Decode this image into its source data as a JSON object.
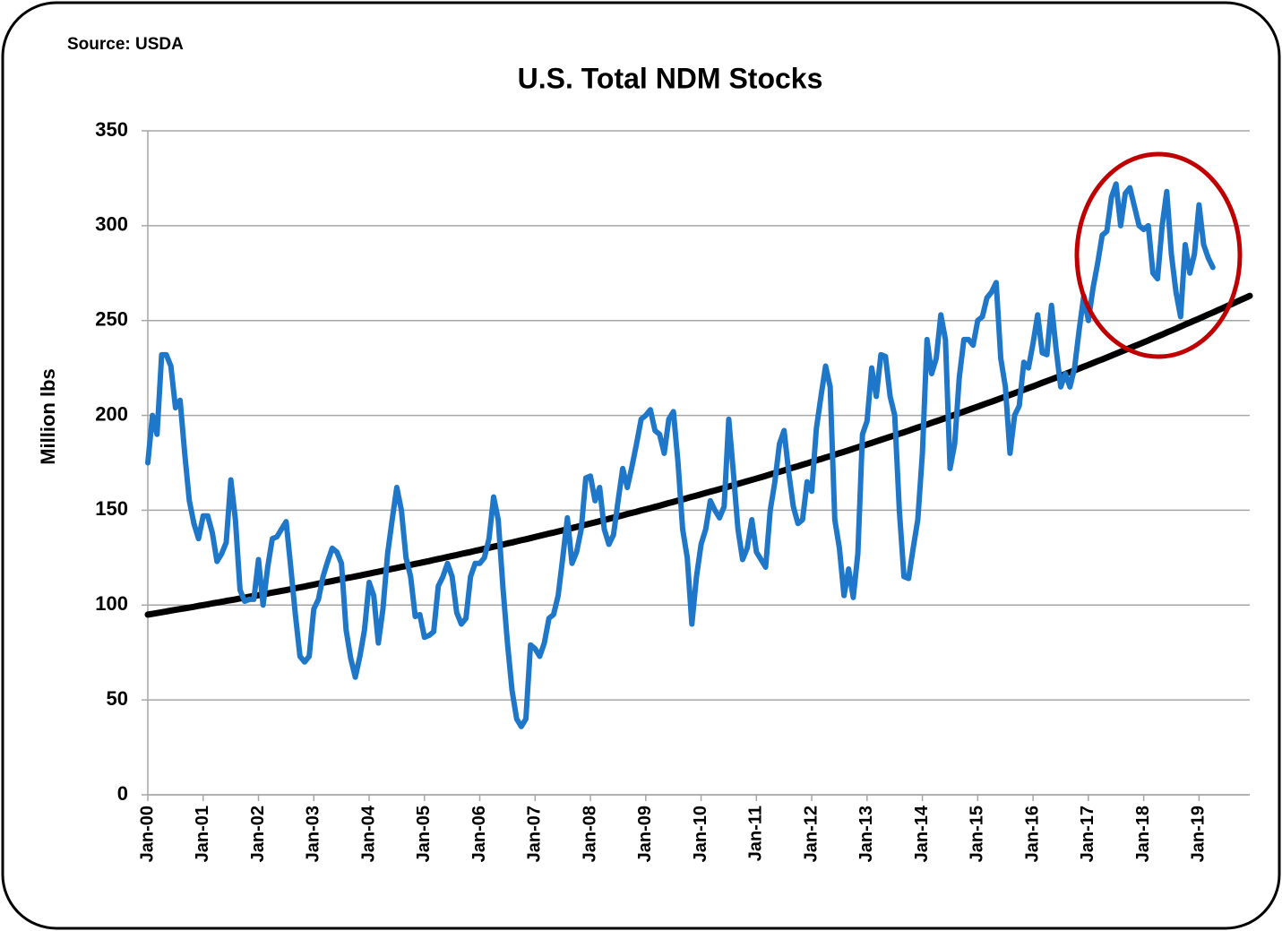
{
  "chart_data": {
    "type": "line",
    "source": "Source: USDA",
    "title": "U.S. Total NDM Stocks",
    "y_label": "Million lbs",
    "categories": [
      "Jan-00",
      null,
      null,
      null,
      null,
      null,
      null,
      null,
      null,
      null,
      null,
      null,
      "Jan-01",
      null,
      null,
      null,
      null,
      null,
      null,
      null,
      null,
      null,
      null,
      null,
      "Jan-02",
      null,
      null,
      null,
      null,
      null,
      null,
      null,
      null,
      null,
      null,
      null,
      "Jan-03",
      null,
      null,
      null,
      null,
      null,
      null,
      null,
      null,
      null,
      null,
      null,
      "Jan-04",
      null,
      null,
      null,
      null,
      null,
      null,
      null,
      null,
      null,
      null,
      null,
      "Jan-05",
      null,
      null,
      null,
      null,
      null,
      null,
      null,
      null,
      null,
      null,
      null,
      "Jan-06",
      null,
      null,
      null,
      null,
      null,
      null,
      null,
      null,
      null,
      null,
      null,
      "Jan-07",
      null,
      null,
      null,
      null,
      null,
      null,
      null,
      null,
      null,
      null,
      null,
      "Jan-08",
      null,
      null,
      null,
      null,
      null,
      null,
      null,
      null,
      null,
      null,
      null,
      "Jan-09",
      null,
      null,
      null,
      null,
      null,
      null,
      null,
      null,
      null,
      null,
      null,
      "Jan-10",
      null,
      null,
      null,
      null,
      null,
      null,
      null,
      null,
      null,
      null,
      null,
      "Jan-11",
      null,
      null,
      null,
      null,
      null,
      null,
      null,
      null,
      null,
      null,
      null,
      "Jan-12",
      null,
      null,
      null,
      null,
      null,
      null,
      null,
      null,
      null,
      null,
      null,
      "Jan-13",
      null,
      null,
      null,
      null,
      null,
      null,
      null,
      null,
      null,
      null,
      null,
      "Jan-14",
      null,
      null,
      null,
      null,
      null,
      null,
      null,
      null,
      null,
      null,
      null,
      "Jan-15",
      null,
      null,
      null,
      null,
      null,
      null,
      null,
      null,
      null,
      null,
      null,
      "Jan-16",
      null,
      null,
      null,
      null,
      null,
      null,
      null,
      null,
      null,
      null,
      null,
      "Jan-17",
      null,
      null,
      null,
      null,
      null,
      null,
      null,
      null,
      null,
      null,
      null,
      "Jan-18",
      null,
      null,
      null,
      null,
      null,
      null,
      null,
      null,
      null,
      null,
      null,
      "Jan-19",
      null,
      null,
      null,
      null,
      null,
      null,
      null,
      null,
      null,
      null,
      null
    ],
    "series": [
      {
        "color": "#1f77c9",
        "values": [
          175,
          200,
          190,
          232,
          232,
          226,
          204,
          208,
          180,
          155,
          143,
          135,
          147,
          147,
          138,
          123,
          127,
          133,
          166,
          145,
          108,
          102,
          103,
          103,
          124,
          100,
          120,
          135,
          136,
          140,
          144,
          120,
          95,
          73,
          70,
          73,
          98,
          103,
          115,
          123,
          130,
          128,
          122,
          87,
          72,
          62,
          73,
          87,
          112,
          105,
          80,
          98,
          127,
          145,
          162,
          150,
          125,
          115,
          94,
          95,
          83,
          84,
          86,
          110,
          115,
          122,
          115,
          96,
          90,
          93,
          115,
          122,
          122,
          125,
          135,
          157,
          145,
          110,
          80,
          55,
          40,
          36,
          40,
          79,
          77,
          73,
          80,
          93,
          95,
          105,
          125,
          146,
          122,
          128,
          140,
          167,
          168,
          155,
          162,
          140,
          132,
          137,
          155,
          172,
          162,
          173,
          185,
          198,
          200,
          203,
          192,
          190,
          180,
          198,
          202,
          175,
          140,
          125,
          90,
          115,
          132,
          140,
          155,
          150,
          146,
          152,
          198,
          170,
          140,
          124,
          130,
          145,
          128,
          124,
          120,
          150,
          165,
          185,
          192,
          170,
          152,
          143,
          145,
          165,
          160,
          193,
          210,
          226,
          215,
          145,
          130,
          105,
          119,
          104,
          127,
          190,
          197,
          225,
          210,
          232,
          231,
          210,
          200,
          150,
          115,
          114,
          130,
          145,
          180,
          240,
          222,
          230,
          253,
          240,
          172,
          185,
          220,
          240,
          240,
          237,
          250,
          252,
          262,
          265,
          270,
          230,
          215,
          180,
          200,
          205,
          228,
          225,
          238,
          253,
          233,
          232,
          258,
          235,
          215,
          222,
          215,
          225,
          245,
          263,
          250,
          267,
          280,
          295,
          297,
          315,
          322,
          300,
          317,
          320,
          310,
          300,
          298,
          300,
          275,
          272,
          300,
          318,
          285,
          265,
          252,
          290,
          275,
          285,
          311,
          290,
          283,
          278,
          null,
          null,
          null,
          null,
          null,
          null,
          null,
          null
        ]
      },
      {
        "color": "#000000",
        "values": [
          95,
          95.4,
          95.8,
          96.2,
          96.6,
          97.1,
          97.5,
          97.9,
          98.3,
          98.7,
          99.1,
          99.6,
          100,
          100.4,
          100.9,
          101.3,
          101.7,
          102.2,
          102.6,
          103,
          103.5,
          103.9,
          104.4,
          104.8,
          105.2,
          105.7,
          106.1,
          106.6,
          107,
          107.5,
          107.9,
          108.4,
          108.9,
          109.3,
          109.8,
          110.3,
          110.8,
          111.3,
          111.8,
          112.2,
          112.7,
          113.2,
          113.7,
          114.2,
          114.6,
          115.1,
          115.6,
          116.1,
          116.6,
          117.1,
          117.6,
          118.1,
          118.6,
          119.1,
          119.6,
          120.1,
          120.6,
          121.2,
          121.7,
          122.2,
          122.7,
          123.2,
          123.8,
          124.3,
          124.8,
          125.4,
          125.9,
          126.4,
          127,
          127.5,
          128,
          128.6,
          129.1,
          129.7,
          130.2,
          130.8,
          131.3,
          131.9,
          132.5,
          133,
          133.6,
          134.2,
          134.7,
          135.3,
          135.9,
          136.5,
          137.1,
          137.7,
          138.2,
          138.8,
          139.4,
          140,
          140.6,
          141.2,
          141.8,
          142.4,
          143,
          143.6,
          144.2,
          144.8,
          145.5,
          146.1,
          146.7,
          147.3,
          148,
          148.6,
          149.2,
          149.9,
          150.5,
          151.1,
          151.8,
          152.4,
          153.1,
          153.8,
          154.4,
          155.1,
          155.7,
          156.4,
          157.1,
          157.7,
          158.4,
          159.1,
          159.8,
          160.4,
          161.1,
          161.8,
          162.5,
          163.2,
          163.9,
          164.6,
          165.3,
          166,
          166.7,
          167.4,
          168.1,
          168.9,
          169.6,
          170.3,
          171,
          171.8,
          172.5,
          173.2,
          174,
          174.7,
          175.5,
          176.3,
          177,
          177.8,
          178.5,
          179.3,
          180.1,
          180.8,
          181.6,
          182.4,
          183.2,
          183.9,
          184.7,
          185.5,
          186.3,
          187.1,
          187.9,
          188.7,
          189.5,
          190.3,
          191.1,
          191.9,
          192.8,
          193.6,
          194.4,
          195.2,
          196.1,
          196.9,
          197.7,
          198.6,
          199.5,
          200.3,
          201.1,
          202,
          202.9,
          203.8,
          204.6,
          205.5,
          206.4,
          207.2,
          208.1,
          209,
          209.9,
          210.8,
          211.7,
          212.6,
          213.5,
          214.4,
          215.3,
          216.2,
          217.2,
          218.1,
          219,
          219.9,
          220.9,
          221.8,
          222.8,
          223.7,
          224.7,
          225.7,
          226.6,
          227.6,
          228.6,
          229.5,
          230.5,
          231.5,
          232.5,
          233.5,
          234.5,
          235.5,
          236.5,
          237.5,
          238.5,
          239.5,
          240.6,
          241.6,
          242.6,
          243.7,
          244.7,
          245.7,
          246.8,
          247.9,
          248.9,
          250,
          251,
          252.1,
          253.2,
          254.2,
          255.3,
          256.4,
          257.5,
          258.6,
          259.7,
          260.8,
          261.9,
          263
        ]
      }
    ],
    "ylim": [
      0,
      350
    ],
    "yticks": [
      0,
      50,
      100,
      150,
      200,
      250,
      300,
      350
    ],
    "grid": true
  }
}
